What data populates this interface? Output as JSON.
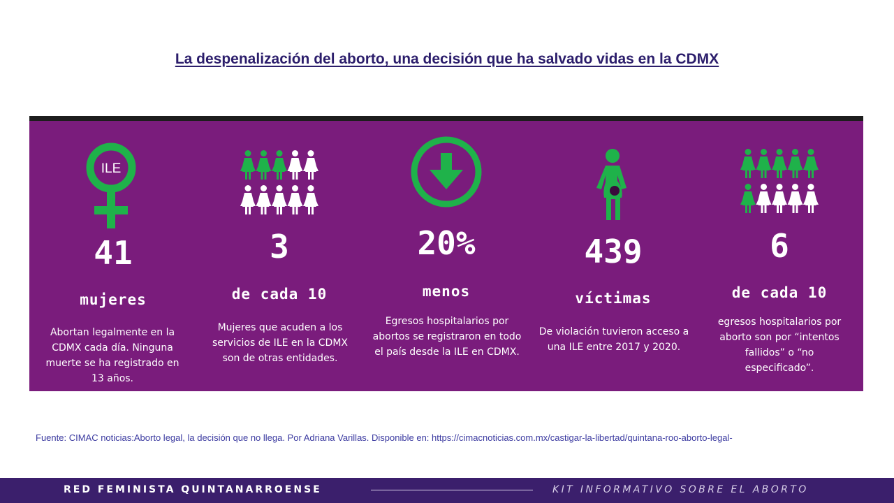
{
  "title": "La despenalización del aborto, una decisión que ha salvado vidas en la CDMX",
  "colors": {
    "banner": "#7a1c7c",
    "banner_top_bar": "#1d1d1d",
    "icon_green": "#1fb24a",
    "icon_white": "#ffffff",
    "title": "#2b1d6b",
    "source": "#3b3aa0",
    "footer": "#3b1f6c"
  },
  "stats": [
    {
      "icon": "female-symbol-icon",
      "icon_text": "ILE",
      "number": "41",
      "unit": "mujeres",
      "description": "Abortan legalmente en la CDMX cada día. Ninguna muerte se ha registrado en 13 años."
    },
    {
      "icon": "women-pictogram-icon",
      "highlighted": 3,
      "total": 10,
      "number": "3",
      "unit": "de cada 10",
      "description": "Mujeres que acuden a los servicios de ILE en la CDMX son de otras entidades."
    },
    {
      "icon": "down-arrow-circle-icon",
      "number": "20%",
      "unit": "menos",
      "description": "Egresos hospitalarios por abortos se registraron en todo el país desde la ILE en CDMX."
    },
    {
      "icon": "pregnant-woman-icon",
      "number": "439",
      "unit": "víctimas",
      "description": "De violación tuvieron acceso a una ILE entre 2017 y 2020."
    },
    {
      "icon": "women-pictogram-icon",
      "highlighted": 6,
      "total": 10,
      "number": "6",
      "unit": "de cada 10",
      "description": "egresos hospitalarios por aborto son por “intentos fallidos” o “no especificado”."
    }
  ],
  "source": "Fuente: CIMAC noticias:Aborto  legal, la decisión que no llega. Por Adriana Varillas. Disponible en: https://cimacnoticias.com.mx/castigar-la-libertad/quintana-roo-aborto-legal-",
  "footer": {
    "left": "RED FEMINISTA QUINTANARROENSE",
    "right": "KIT INFORMATIVO SOBRE EL ABORTO"
  }
}
